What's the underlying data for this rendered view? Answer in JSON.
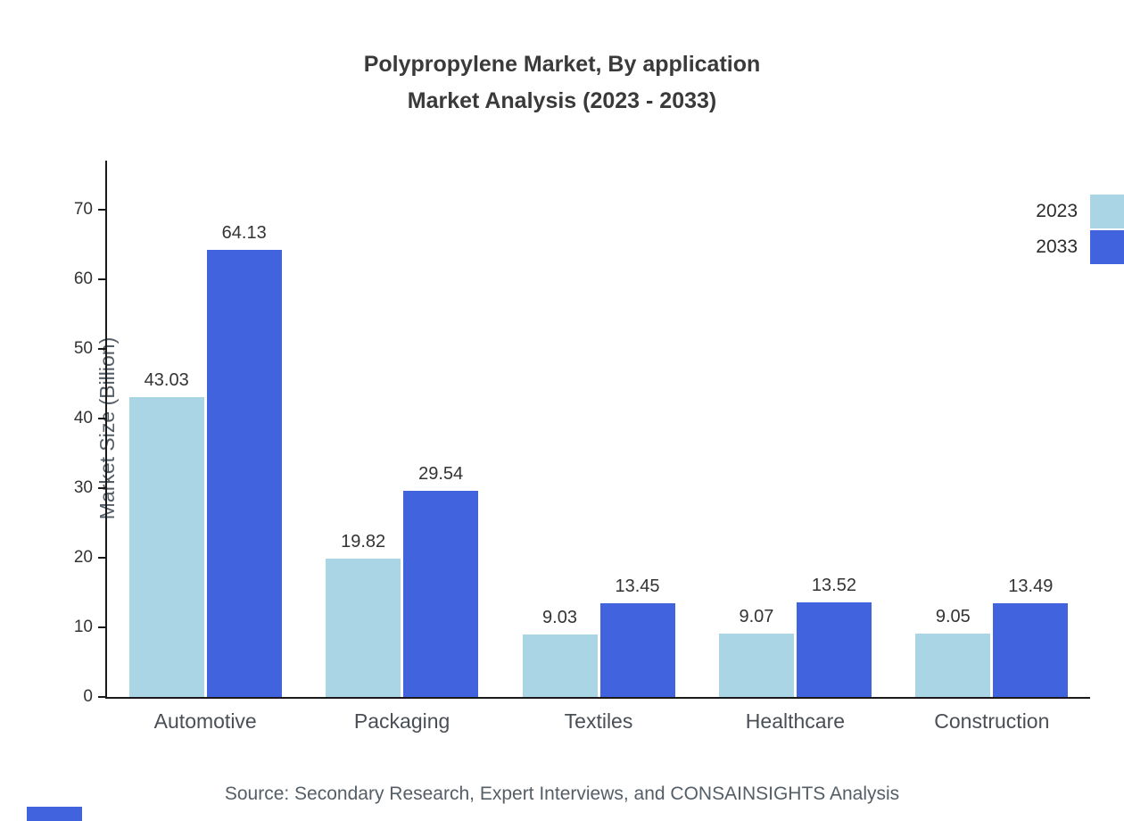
{
  "title": {
    "line1": "Polypropylene Market, By application",
    "line2": "Market Analysis (2023 - 2033)"
  },
  "source": "Source: Secondary Research, Expert Interviews, and CONSAINSIGHTS Analysis",
  "colors": {
    "series_2023": "#a9d5e5",
    "series_2033": "#4164de",
    "axis": "#1a1a1a",
    "accent_bar": "#4164de"
  },
  "chart_data": {
    "type": "bar",
    "title": "Polypropylene Market, By application Market Analysis (2023 - 2033)",
    "categories": [
      "Automotive",
      "Packaging",
      "Textiles",
      "Healthcare",
      "Construction"
    ],
    "series": [
      {
        "name": "2023",
        "color": "#a9d5e5",
        "values": [
          43.03,
          19.82,
          9.03,
          9.07,
          9.05
        ]
      },
      {
        "name": "2033",
        "color": "#4164de",
        "values": [
          64.13,
          29.54,
          13.45,
          13.52,
          13.49
        ]
      }
    ],
    "xlabel": "",
    "ylabel": "Market Size (Billion)",
    "ylim": [
      0,
      77
    ],
    "yticks": [
      0,
      10,
      20,
      30,
      40,
      50,
      60,
      70
    ],
    "grid": false,
    "legend_position": "top-right",
    "value_labels": true
  }
}
